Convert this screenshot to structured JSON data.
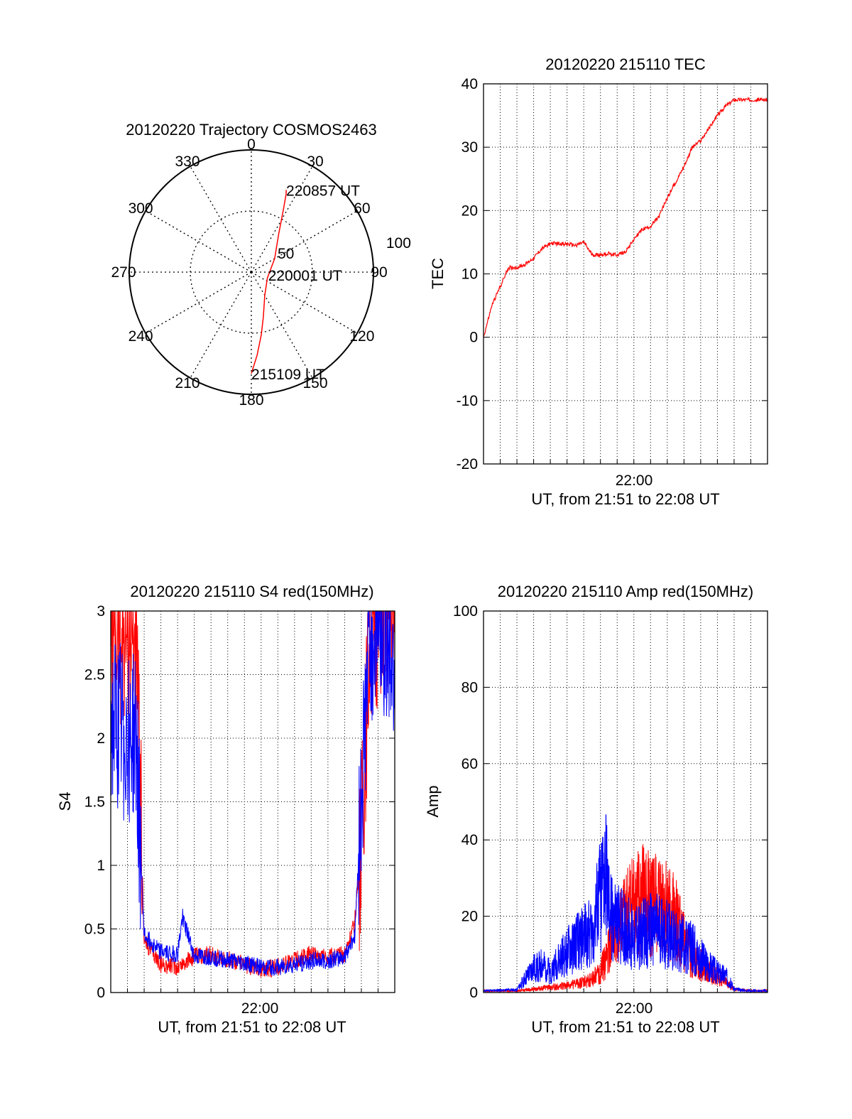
{
  "chart_data": [
    {
      "id": "trajectory",
      "type": "polar",
      "title": "20120220 Trajectory COSMOS2463",
      "azimuth_labels": [
        "0",
        "30",
        "60",
        "90",
        "120",
        "150",
        "180",
        "210",
        "240",
        "270",
        "300",
        "330"
      ],
      "radius_labels": [
        "50",
        "100"
      ],
      "radius_max": 100,
      "trajectory": {
        "color": "#ff0000",
        "points": [
          {
            "az": 180,
            "r": 83
          },
          {
            "az": 176,
            "r": 68
          },
          {
            "az": 171,
            "r": 52
          },
          {
            "az": 165,
            "r": 38
          },
          {
            "az": 150,
            "r": 22
          },
          {
            "az": 110,
            "r": 14
          },
          {
            "az": 60,
            "r": 22
          },
          {
            "az": 36,
            "r": 38
          },
          {
            "az": 27,
            "r": 58
          },
          {
            "az": 24,
            "r": 70
          },
          {
            "az": 23,
            "r": 73
          }
        ]
      },
      "annotations": [
        {
          "text": "220857 UT",
          "az": 23,
          "r": 73
        },
        {
          "text": "220001 UT",
          "az": 100,
          "r": 14
        },
        {
          "text": "215109 UT",
          "az": 180,
          "r": 83
        }
      ]
    },
    {
      "id": "tec",
      "type": "line",
      "title": "20120220 215110 TEC",
      "ylabel": "TEC",
      "xlabel": "UT, from 21:51 to 22:08 UT",
      "x_tick_label": "22:00",
      "ylim": [
        -20,
        40
      ],
      "yticks": [
        -20,
        -10,
        0,
        10,
        20,
        30,
        40
      ],
      "grid": true,
      "series": [
        {
          "color": "#ff0000",
          "x": [
            0,
            0.5,
            1.0,
            1.5,
            2.0,
            2.5,
            3.0,
            3.5,
            4.0,
            4.5,
            5.0,
            5.5,
            6.0,
            6.5,
            7.0,
            7.5,
            8.0,
            8.5,
            9.0,
            9.5,
            10.0,
            10.5,
            11.0,
            11.5,
            12.0,
            12.5,
            13.0,
            13.5,
            14.0,
            14.5,
            15.0,
            15.5,
            16.0,
            16.5,
            17.0
          ],
          "y": [
            0,
            5,
            8,
            11,
            11,
            11.5,
            12.5,
            14,
            14.8,
            14.8,
            14.7,
            14.5,
            15,
            13,
            13,
            13.2,
            13,
            13.5,
            15.5,
            17,
            17.5,
            19,
            22,
            24.5,
            27,
            30,
            31,
            33,
            35,
            36.5,
            37.5,
            37.5,
            37.5,
            37.5,
            37.5
          ]
        }
      ]
    },
    {
      "id": "s4",
      "type": "line",
      "title": "20120220 215110 S4 red(150MHz)",
      "ylabel": "S4",
      "xlabel": "UT, from 21:51 to 22:08 UT",
      "x_tick_label": "22:00",
      "ylim": [
        0,
        3
      ],
      "yticks": [
        "0",
        "0.5",
        "1",
        "1.5",
        "2",
        "2.5",
        "3"
      ],
      "grid": true,
      "series": [
        {
          "color": "#ff0000",
          "x": [
            0,
            1.5,
            2.0,
            3.0,
            4.0,
            5.0,
            6.0,
            7.0,
            8.0,
            9.0,
            10.0,
            11.0,
            12.0,
            13.0,
            14.0,
            14.6,
            15.0,
            15.5,
            16.2,
            17.0
          ],
          "y": [
            2.8,
            2.8,
            0.4,
            0.22,
            0.2,
            0.28,
            0.3,
            0.26,
            0.22,
            0.18,
            0.2,
            0.25,
            0.3,
            0.28,
            0.3,
            0.55,
            1.2,
            2.8,
            3.0,
            3.0
          ]
        },
        {
          "color": "#0000ff",
          "x": [
            0,
            1.5,
            2.0,
            3.0,
            4.0,
            4.3,
            5.0,
            6.0,
            7.0,
            8.0,
            9.0,
            10.0,
            11.0,
            12.0,
            13.0,
            14.0,
            14.6,
            15.0,
            15.5,
            16.2,
            17.0
          ],
          "y": [
            2.1,
            2.0,
            0.45,
            0.32,
            0.3,
            0.6,
            0.28,
            0.28,
            0.25,
            0.23,
            0.2,
            0.2,
            0.22,
            0.25,
            0.25,
            0.28,
            0.45,
            1.5,
            2.8,
            2.9,
            2.6
          ]
        }
      ]
    },
    {
      "id": "amp",
      "type": "line",
      "title": "20120220 215110 Amp red(150MHz)",
      "ylabel": "Amp",
      "xlabel": "UT, from 21:51 to 22:08 UT",
      "x_tick_label": "22:00",
      "ylim": [
        0,
        100
      ],
      "yticks": [
        0,
        20,
        40,
        60,
        80,
        100
      ],
      "grid": true,
      "series": [
        {
          "color": "#ff0000",
          "x": [
            0,
            2,
            3,
            4,
            5,
            6,
            6.5,
            7,
            7.5,
            8,
            8.5,
            9,
            9.5,
            10,
            10.5,
            11,
            11.5,
            12,
            12.5,
            13,
            13.5,
            14,
            15,
            16,
            17
          ],
          "y": [
            0.5,
            0.5,
            1,
            1.5,
            2,
            3,
            4,
            6,
            12,
            17,
            22,
            25,
            27,
            26,
            25,
            24,
            21,
            15,
            10,
            8,
            6,
            5,
            1,
            0.5,
            0.5
          ]
        },
        {
          "color": "#0000ff",
          "x": [
            0,
            2,
            2.5,
            3,
            3.5,
            4,
            4.5,
            5,
            5.5,
            6,
            6.5,
            7,
            7.3,
            7.5,
            8,
            8.5,
            9,
            9.5,
            10,
            10.5,
            11,
            11.5,
            12,
            12.5,
            13,
            13.5,
            14,
            14.5,
            15,
            16,
            17
          ],
          "y": [
            0.5,
            0.8,
            4,
            7,
            8,
            6,
            9,
            12,
            14,
            16,
            18,
            28,
            35,
            24,
            20,
            18,
            16,
            17,
            18,
            18,
            17,
            16,
            14,
            13,
            10,
            8,
            6,
            5,
            1,
            0.5,
            0.5
          ]
        }
      ]
    }
  ]
}
